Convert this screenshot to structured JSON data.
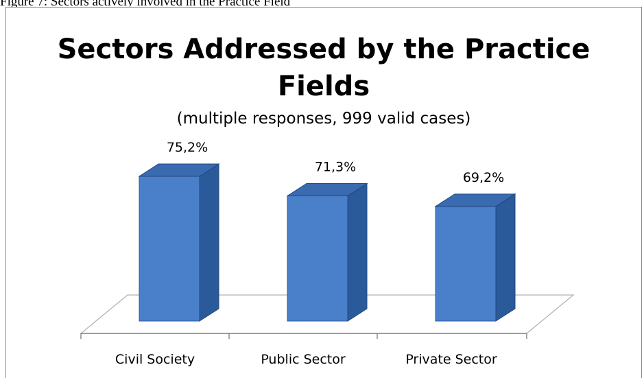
{
  "caption": "Figure 7: Sectors actively involved in the Practice Field",
  "chart_data": {
    "type": "bar",
    "title_line1": "Sectors Addressed by the Practice",
    "title_line2": "Fields",
    "subtitle": "(multiple responses, 999 valid cases)",
    "categories": [
      "Civil Society",
      "Public Sector",
      "Private Sector"
    ],
    "values": [
      75.2,
      71.3,
      69.2
    ],
    "data_labels": [
      "75,2%",
      "71,3%",
      "69,2%"
    ],
    "ylabel": "",
    "xlabel": "",
    "grid": false,
    "legend": "none",
    "bar_color": "#4a7fc9",
    "bar_side_color": "#2b5a9b",
    "bar_top_color": "#3a6ab0"
  }
}
